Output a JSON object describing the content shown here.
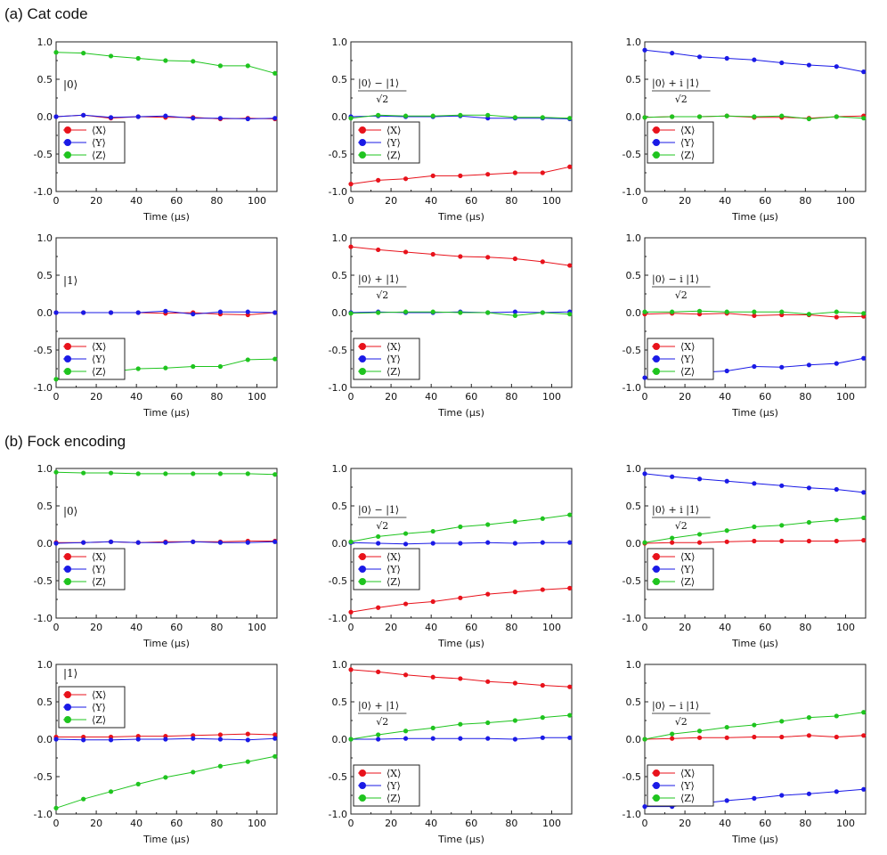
{
  "sections": [
    {
      "label": "(a) Cat code"
    },
    {
      "label": "(b) Fock encoding"
    }
  ],
  "colors": {
    "X": "#e8121b",
    "Y": "#1a1ae6",
    "Z": "#1fc41f"
  },
  "legend": [
    "⟨X⟩",
    "⟨Y⟩",
    "⟨Z⟩"
  ],
  "chart_data": [
    {
      "type": "line",
      "section": 0,
      "state_label": {
        "kind": "ket",
        "text": "|0⟩"
      },
      "legend_placement": "center-left",
      "xlabel": "Time (μs)",
      "ylabel": "",
      "xlim": [
        0,
        110
      ],
      "ylim": [
        -1,
        1
      ],
      "x": [
        0,
        13.6,
        27.3,
        40.9,
        54.5,
        68.2,
        81.8,
        95.5,
        109
      ],
      "series": [
        {
          "name": "⟨X⟩",
          "values": [
            0.0,
            0.02,
            -0.02,
            0.0,
            -0.01,
            -0.01,
            -0.03,
            -0.02,
            -0.03
          ]
        },
        {
          "name": "⟨Y⟩",
          "values": [
            0.0,
            0.02,
            -0.01,
            0.0,
            0.01,
            -0.02,
            -0.02,
            -0.03,
            -0.02
          ]
        },
        {
          "name": "⟨Z⟩",
          "values": [
            0.86,
            0.85,
            0.81,
            0.78,
            0.75,
            0.74,
            0.68,
            0.68,
            0.58
          ]
        }
      ]
    },
    {
      "type": "line",
      "section": 0,
      "state_label": {
        "kind": "frac",
        "num": "|0⟩ − |1⟩",
        "den": "√2"
      },
      "legend_placement": "center-left",
      "xlabel": "Time (μs)",
      "ylabel": "",
      "xlim": [
        0,
        110
      ],
      "ylim": [
        -1,
        1
      ],
      "x": [
        0,
        13.6,
        27.3,
        40.9,
        54.5,
        68.2,
        81.8,
        95.5,
        109
      ],
      "series": [
        {
          "name": "⟨X⟩",
          "values": [
            -0.9,
            -0.85,
            -0.83,
            -0.79,
            -0.79,
            -0.77,
            -0.75,
            -0.75,
            -0.67
          ]
        },
        {
          "name": "⟨Y⟩",
          "values": [
            0.0,
            0.01,
            0.0,
            0.0,
            0.01,
            -0.02,
            -0.02,
            -0.02,
            -0.03
          ]
        },
        {
          "name": "⟨Z⟩",
          "values": [
            -0.02,
            0.02,
            0.01,
            0.01,
            0.02,
            0.02,
            -0.01,
            -0.01,
            -0.02
          ]
        }
      ]
    },
    {
      "type": "line",
      "section": 0,
      "state_label": {
        "kind": "frac",
        "num": "|0⟩ + i |1⟩",
        "den": "√2"
      },
      "legend_placement": "center-left",
      "xlabel": "Time (μs)",
      "ylabel": "",
      "xlim": [
        0,
        110
      ],
      "ylim": [
        -1,
        1
      ],
      "x": [
        0,
        13.6,
        27.3,
        40.9,
        54.5,
        68.2,
        81.8,
        95.5,
        109
      ],
      "series": [
        {
          "name": "⟨X⟩",
          "values": [
            -0.01,
            0.0,
            0.0,
            0.01,
            -0.01,
            -0.01,
            -0.02,
            0.0,
            0.01
          ]
        },
        {
          "name": "⟨Y⟩",
          "values": [
            0.89,
            0.85,
            0.8,
            0.78,
            0.76,
            0.72,
            0.69,
            0.67,
            0.6
          ]
        },
        {
          "name": "⟨Z⟩",
          "values": [
            -0.01,
            0.0,
            0.0,
            0.01,
            0.0,
            0.01,
            -0.03,
            0.0,
            -0.02
          ]
        }
      ]
    },
    {
      "type": "line",
      "section": 0,
      "state_label": {
        "kind": "ket",
        "text": "|1⟩"
      },
      "legend_placement": "bottom-left",
      "xlabel": "Time (μs)",
      "ylabel": "",
      "xlim": [
        0,
        110
      ],
      "ylim": [
        -1,
        1
      ],
      "x": [
        0,
        13.6,
        27.3,
        40.9,
        54.5,
        68.2,
        81.8,
        95.5,
        109
      ],
      "series": [
        {
          "name": "⟨X⟩",
          "values": [
            0.0,
            0.0,
            0.0,
            0.0,
            -0.01,
            0.0,
            -0.02,
            -0.03,
            0.0
          ]
        },
        {
          "name": "⟨Y⟩",
          "values": [
            0.0,
            0.0,
            0.0,
            0.0,
            0.02,
            -0.02,
            0.01,
            0.01,
            0.0
          ]
        },
        {
          "name": "⟨Z⟩",
          "values": [
            -0.89,
            -0.84,
            -0.79,
            -0.75,
            -0.74,
            -0.72,
            -0.72,
            -0.63,
            -0.62
          ]
        }
      ]
    },
    {
      "type": "line",
      "section": 0,
      "state_label": {
        "kind": "frac",
        "num": "|0⟩ + |1⟩",
        "den": "√2"
      },
      "legend_placement": "bottom-left",
      "xlabel": "Time (μs)",
      "ylabel": "",
      "xlim": [
        0,
        110
      ],
      "ylim": [
        -1,
        1
      ],
      "x": [
        0,
        13.6,
        27.3,
        40.9,
        54.5,
        68.2,
        81.8,
        95.5,
        109
      ],
      "series": [
        {
          "name": "⟨X⟩",
          "values": [
            0.88,
            0.84,
            0.81,
            0.78,
            0.75,
            0.74,
            0.72,
            0.68,
            0.63
          ]
        },
        {
          "name": "⟨Y⟩",
          "values": [
            0.0,
            0.01,
            0.0,
            0.0,
            0.01,
            0.0,
            0.01,
            0.0,
            0.01
          ]
        },
        {
          "name": "⟨Z⟩",
          "values": [
            -0.01,
            0.0,
            0.01,
            0.01,
            0.0,
            0.0,
            -0.04,
            0.0,
            -0.02
          ]
        }
      ]
    },
    {
      "type": "line",
      "section": 0,
      "state_label": {
        "kind": "frac",
        "num": "|0⟩ − i |1⟩",
        "den": "√2"
      },
      "legend_placement": "bottom-left",
      "xlabel": "Time (μs)",
      "ylabel": "",
      "xlim": [
        0,
        110
      ],
      "ylim": [
        -1,
        1
      ],
      "x": [
        0,
        13.6,
        27.3,
        40.9,
        54.5,
        68.2,
        81.8,
        95.5,
        109
      ],
      "series": [
        {
          "name": "⟨X⟩",
          "values": [
            -0.02,
            -0.01,
            -0.02,
            -0.01,
            -0.04,
            -0.03,
            -0.03,
            -0.06,
            -0.05
          ]
        },
        {
          "name": "⟨Y⟩",
          "values": [
            -0.87,
            -0.83,
            -0.8,
            -0.78,
            -0.72,
            -0.73,
            -0.7,
            -0.68,
            -0.61
          ]
        },
        {
          "name": "⟨Z⟩",
          "values": [
            0.01,
            0.01,
            0.02,
            0.01,
            0.01,
            0.01,
            -0.02,
            0.01,
            -0.01
          ]
        }
      ]
    },
    {
      "type": "line",
      "section": 1,
      "state_label": {
        "kind": "ket",
        "text": "|0⟩"
      },
      "legend_placement": "center-left",
      "xlabel": "Time (μs)",
      "ylabel": "",
      "xlim": [
        0,
        110
      ],
      "ylim": [
        -1,
        1
      ],
      "x": [
        0,
        13.6,
        27.3,
        40.9,
        54.5,
        68.2,
        81.8,
        95.5,
        109
      ],
      "series": [
        {
          "name": "⟨X⟩",
          "values": [
            0.01,
            0.01,
            0.02,
            0.01,
            0.02,
            0.02,
            0.02,
            0.03,
            0.03
          ]
        },
        {
          "name": "⟨Y⟩",
          "values": [
            0.0,
            0.01,
            0.02,
            0.01,
            0.01,
            0.02,
            0.01,
            0.01,
            0.02
          ]
        },
        {
          "name": "⟨Z⟩",
          "values": [
            0.95,
            0.94,
            0.94,
            0.93,
            0.93,
            0.93,
            0.93,
            0.93,
            0.92
          ]
        }
      ]
    },
    {
      "type": "line",
      "section": 1,
      "state_label": {
        "kind": "frac",
        "num": "|0⟩ − |1⟩",
        "den": "√2"
      },
      "legend_placement": "center-left",
      "xlabel": "Time (μs)",
      "ylabel": "",
      "xlim": [
        0,
        110
      ],
      "ylim": [
        -1,
        1
      ],
      "x": [
        0,
        13.6,
        27.3,
        40.9,
        54.5,
        68.2,
        81.8,
        95.5,
        109
      ],
      "series": [
        {
          "name": "⟨X⟩",
          "values": [
            -0.92,
            -0.86,
            -0.81,
            -0.78,
            -0.73,
            -0.68,
            -0.65,
            -0.62,
            -0.6
          ]
        },
        {
          "name": "⟨Y⟩",
          "values": [
            0.01,
            0.0,
            -0.01,
            0.0,
            0.0,
            0.01,
            0.0,
            0.01,
            0.01
          ]
        },
        {
          "name": "⟨Z⟩",
          "values": [
            0.02,
            0.09,
            0.13,
            0.16,
            0.22,
            0.25,
            0.29,
            0.33,
            0.38
          ]
        }
      ]
    },
    {
      "type": "line",
      "section": 1,
      "state_label": {
        "kind": "frac",
        "num": "|0⟩ + i |1⟩",
        "den": "√2"
      },
      "legend_placement": "center-left",
      "xlabel": "Time (μs)",
      "ylabel": "",
      "xlim": [
        0,
        110
      ],
      "ylim": [
        -1,
        1
      ],
      "x": [
        0,
        13.6,
        27.3,
        40.9,
        54.5,
        68.2,
        81.8,
        95.5,
        109
      ],
      "series": [
        {
          "name": "⟨X⟩",
          "values": [
            0.0,
            0.01,
            0.01,
            0.02,
            0.03,
            0.03,
            0.03,
            0.03,
            0.04
          ]
        },
        {
          "name": "⟨Y⟩",
          "values": [
            0.93,
            0.89,
            0.86,
            0.83,
            0.8,
            0.77,
            0.74,
            0.72,
            0.68
          ]
        },
        {
          "name": "⟨Z⟩",
          "values": [
            0.01,
            0.07,
            0.12,
            0.17,
            0.22,
            0.24,
            0.28,
            0.31,
            0.34
          ]
        }
      ]
    },
    {
      "type": "line",
      "section": 1,
      "state_label": {
        "kind": "ket",
        "text": "|1⟩"
      },
      "legend_placement": "top-left",
      "xlabel": "Time (μs)",
      "ylabel": "",
      "xlim": [
        0,
        110
      ],
      "ylim": [
        -1,
        1
      ],
      "x": [
        0,
        13.6,
        27.3,
        40.9,
        54.5,
        68.2,
        81.8,
        95.5,
        109
      ],
      "series": [
        {
          "name": "⟨X⟩",
          "values": [
            0.03,
            0.03,
            0.03,
            0.04,
            0.04,
            0.05,
            0.06,
            0.07,
            0.06
          ]
        },
        {
          "name": "⟨Y⟩",
          "values": [
            0.0,
            -0.01,
            -0.01,
            0.0,
            0.0,
            0.01,
            0.0,
            -0.01,
            0.01
          ]
        },
        {
          "name": "⟨Z⟩",
          "values": [
            -0.92,
            -0.8,
            -0.7,
            -0.6,
            -0.51,
            -0.44,
            -0.36,
            -0.3,
            -0.23
          ]
        }
      ]
    },
    {
      "type": "line",
      "section": 1,
      "state_label": {
        "kind": "frac",
        "num": "|0⟩ + |1⟩",
        "den": "√2"
      },
      "legend_placement": "bottom-left",
      "xlabel": "Time (μs)",
      "ylabel": "",
      "xlim": [
        0,
        110
      ],
      "ylim": [
        -1,
        1
      ],
      "x": [
        0,
        13.6,
        27.3,
        40.9,
        54.5,
        68.2,
        81.8,
        95.5,
        109
      ],
      "series": [
        {
          "name": "⟨X⟩",
          "values": [
            0.93,
            0.9,
            0.86,
            0.83,
            0.81,
            0.77,
            0.75,
            0.72,
            0.7
          ]
        },
        {
          "name": "⟨Y⟩",
          "values": [
            0.0,
            0.0,
            0.01,
            0.01,
            0.01,
            0.01,
            0.0,
            0.02,
            0.02
          ]
        },
        {
          "name": "⟨Z⟩",
          "values": [
            0.0,
            0.06,
            0.11,
            0.15,
            0.2,
            0.22,
            0.25,
            0.29,
            0.32
          ]
        }
      ]
    },
    {
      "type": "line",
      "section": 1,
      "state_label": {
        "kind": "frac",
        "num": "|0⟩ − i |1⟩",
        "den": "√2"
      },
      "legend_placement": "bottom-left",
      "xlabel": "Time (μs)",
      "ylabel": "",
      "xlim": [
        0,
        110
      ],
      "ylim": [
        -1,
        1
      ],
      "x": [
        0,
        13.6,
        27.3,
        40.9,
        54.5,
        68.2,
        81.8,
        95.5,
        109
      ],
      "series": [
        {
          "name": "⟨X⟩",
          "values": [
            0.0,
            0.01,
            0.02,
            0.02,
            0.03,
            0.03,
            0.05,
            0.03,
            0.05
          ]
        },
        {
          "name": "⟨Y⟩",
          "values": [
            -0.9,
            -0.9,
            -0.86,
            -0.82,
            -0.79,
            -0.75,
            -0.73,
            -0.7,
            -0.67
          ]
        },
        {
          "name": "⟨Z⟩",
          "values": [
            0.0,
            0.07,
            0.11,
            0.16,
            0.19,
            0.24,
            0.29,
            0.31,
            0.36
          ]
        }
      ]
    }
  ]
}
